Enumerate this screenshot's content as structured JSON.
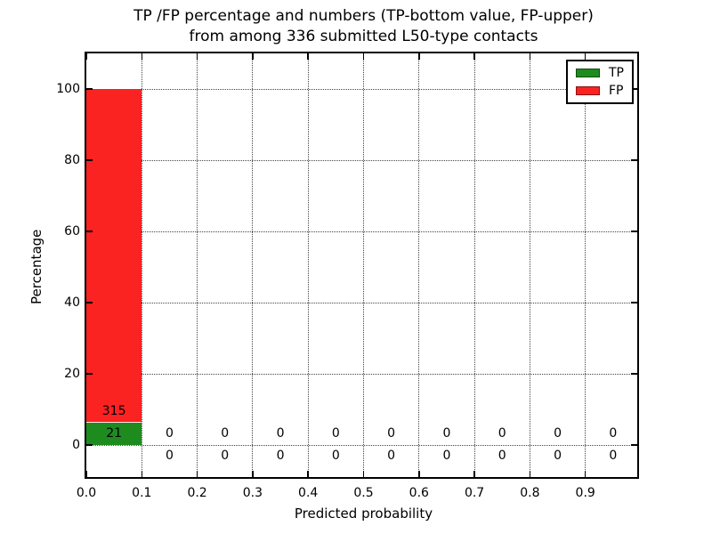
{
  "chart_data": {
    "type": "bar",
    "stacked": true,
    "title": "TP /FP percentage and numbers (TP-bottom value, FP-upper) from among 336 submitted L50-type contacts",
    "title_line1": "TP /FP percentage and numbers (TP-bottom value, FP-upper)",
    "title_line2": "from among 336 submitted L50-type contacts",
    "xlabel": "Predicted probability",
    "ylabel": "Percentage",
    "total_contacts": 336,
    "bins": [
      "0.0-0.1",
      "0.1-0.2",
      "0.2-0.3",
      "0.3-0.4",
      "0.4-0.5",
      "0.5-0.6",
      "0.6-0.7",
      "0.7-0.8",
      "0.8-0.9",
      "0.9-1.0"
    ],
    "bin_centers": [
      0.05,
      0.15,
      0.25,
      0.35,
      0.45,
      0.55,
      0.65,
      0.75,
      0.85,
      0.95
    ],
    "bin_width": 0.1,
    "series": [
      {
        "name": "TP",
        "color": "#1e8b1e",
        "counts": [
          21,
          0,
          0,
          0,
          0,
          0,
          0,
          0,
          0,
          0
        ],
        "percentages": [
          6.25,
          0,
          0,
          0,
          0,
          0,
          0,
          0,
          0,
          0
        ]
      },
      {
        "name": "FP",
        "color": "#fb2222",
        "counts": [
          315,
          0,
          0,
          0,
          0,
          0,
          0,
          0,
          0,
          0
        ],
        "percentages": [
          93.75,
          0,
          0,
          0,
          0,
          0,
          0,
          0,
          0,
          0
        ]
      }
    ],
    "xticks": [
      "0.0",
      "0.1",
      "0.2",
      "0.3",
      "0.4",
      "0.5",
      "0.6",
      "0.7",
      "0.8",
      "0.9"
    ],
    "yticks": [
      0,
      20,
      40,
      60,
      80,
      100
    ],
    "xlim": [
      0.0,
      1.0
    ],
    "ylim": [
      -10,
      110
    ],
    "grid": "dotted",
    "legend": {
      "position": "upper right",
      "entries": [
        "TP",
        "FP"
      ]
    }
  }
}
